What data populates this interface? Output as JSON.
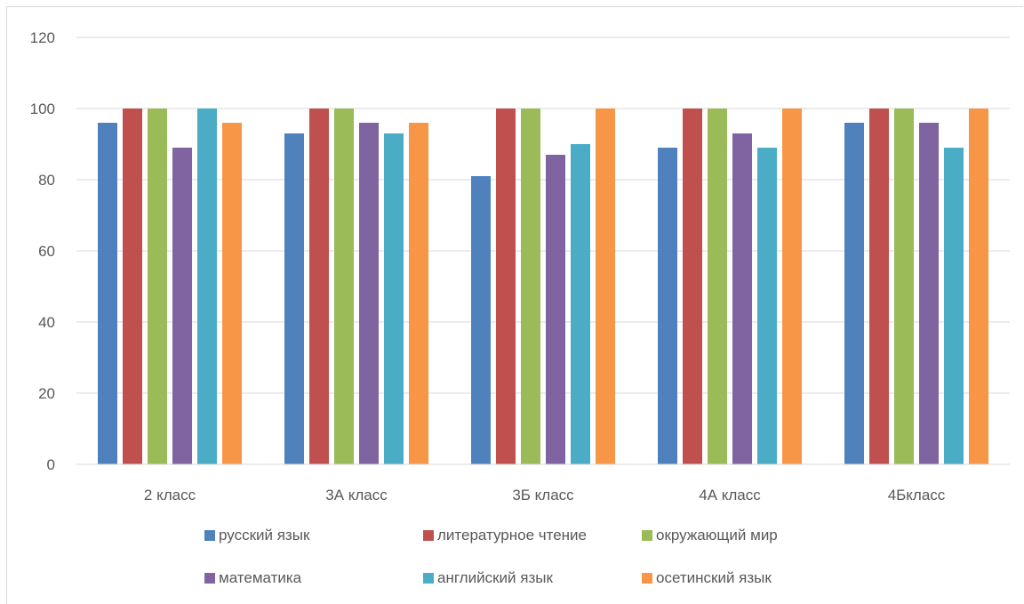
{
  "chart_data": {
    "type": "bar",
    "title": "",
    "xlabel": "",
    "ylabel": "",
    "categories": [
      "2 класс",
      "3А класс",
      "3Б класс",
      "4А класс",
      "4Бкласс"
    ],
    "ylim": [
      0,
      120
    ],
    "yticks": [
      0,
      20,
      40,
      60,
      80,
      100,
      120
    ],
    "grid": true,
    "legend_position": "bottom",
    "series": [
      {
        "name": "русский язык",
        "color": "#4f81bd",
        "values": [
          96,
          93,
          81,
          89,
          96
        ]
      },
      {
        "name": "литературное чтение",
        "color": "#c0504d",
        "values": [
          100,
          100,
          100,
          100,
          100
        ]
      },
      {
        "name": "окружающий мир",
        "color": "#9bbb59",
        "values": [
          100,
          100,
          100,
          100,
          100
        ]
      },
      {
        "name": "математика",
        "color": "#8064a2",
        "values": [
          89,
          96,
          87,
          93,
          96
        ]
      },
      {
        "name": "английский язык",
        "color": "#4bacc6",
        "values": [
          100,
          93,
          90,
          89,
          89
        ]
      },
      {
        "name": "осетинский язык",
        "color": "#f79646",
        "values": [
          96,
          96,
          100,
          100,
          100
        ]
      }
    ]
  }
}
